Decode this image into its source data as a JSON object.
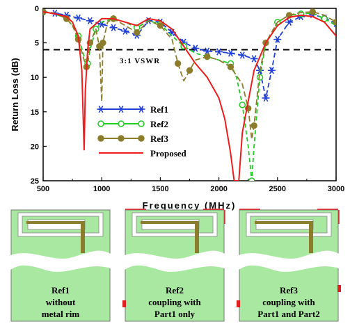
{
  "chart_data": {
    "type": "line",
    "xlabel": "Frequency (MHz)",
    "ylabel": "Return Loss (dB)",
    "xlim": [
      500,
      3000
    ],
    "ylim": [
      0,
      25
    ],
    "y_inverted": true,
    "xticks": [
      500,
      1000,
      1500,
      2000,
      2500,
      3000
    ],
    "yticks": [
      0,
      5,
      10,
      15,
      20,
      25
    ],
    "grid": false,
    "legend_position": "left-middle",
    "reference_line": {
      "y": 6,
      "label": "3:1 VSWR",
      "style": "dashed"
    },
    "series": [
      {
        "name": "Ref1",
        "color": "#1f3fd8",
        "marker": "asterisk",
        "x": [
          500,
          600,
          700,
          800,
          900,
          1000,
          1100,
          1200,
          1300,
          1400,
          1500,
          1600,
          1700,
          1800,
          1900,
          2000,
          2100,
          2200,
          2300,
          2350,
          2400,
          2450,
          2500,
          2600,
          2700,
          2800,
          2900,
          3000
        ],
        "y": [
          0.5,
          0.7,
          1.0,
          1.4,
          1.8,
          2.3,
          2.8,
          3.3,
          3.9,
          1.8,
          2.0,
          3.5,
          4.9,
          5.8,
          6.2,
          6.3,
          6.5,
          6.8,
          7.3,
          9.0,
          13.0,
          9.0,
          4.5,
          2.0,
          1.2,
          0.9,
          1.4,
          2.2
        ]
      },
      {
        "name": "Ref2",
        "color": "#22cc22",
        "marker": "open-circle",
        "x": [
          500,
          600,
          700,
          750,
          800,
          850,
          880,
          900,
          950,
          1000,
          1100,
          1200,
          1300,
          1400,
          1500,
          1600,
          1700,
          1800,
          1900,
          2000,
          2100,
          2150,
          2200,
          2250,
          2280,
          2300,
          2350,
          2400,
          2500,
          2600,
          2700,
          2800,
          2900,
          3000
        ],
        "y": [
          0.5,
          0.8,
          1.5,
          2.5,
          4.0,
          7.0,
          8.0,
          6.0,
          3.0,
          2.0,
          1.5,
          2.0,
          2.8,
          1.8,
          2.3,
          4.0,
          5.5,
          6.5,
          7.0,
          7.5,
          8.0,
          10.0,
          14.0,
          20.0,
          25.0,
          20.0,
          10.0,
          5.0,
          2.0,
          1.0,
          0.8,
          0.7,
          1.5,
          2.5
        ]
      },
      {
        "name": "Ref3",
        "color": "#8b7d2b",
        "marker": "filled-circle",
        "x": [
          500,
          600,
          700,
          750,
          800,
          850,
          870,
          880,
          900,
          950,
          980,
          1000,
          1010,
          1050,
          1100,
          1200,
          1300,
          1400,
          1500,
          1600,
          1650,
          1700,
          1750,
          1800,
          1900,
          2000,
          2100,
          2200,
          2250,
          2280,
          2300,
          2350,
          2400,
          2500,
          2600,
          2700,
          2800,
          2900,
          3000
        ],
        "y": [
          0.5,
          0.7,
          1.5,
          2.5,
          4.5,
          7.5,
          8.5,
          7.5,
          5.0,
          3.0,
          5.5,
          13.5,
          5.0,
          2.0,
          1.5,
          2.5,
          3.5,
          1.8,
          2.5,
          4.5,
          8.0,
          10.5,
          9.0,
          7.5,
          7.0,
          7.5,
          8.5,
          11.0,
          14.5,
          19.0,
          17.0,
          9.0,
          5.0,
          2.0,
          1.0,
          0.6,
          0.5,
          1.0,
          2.0
        ]
      },
      {
        "name": "Proposed",
        "color": "#ee1c1c",
        "marker": "none",
        "x": [
          500,
          600,
          700,
          750,
          800,
          830,
          850,
          860,
          880,
          900,
          1000,
          1100,
          1200,
          1300,
          1400,
          1500,
          1600,
          1700,
          1800,
          1900,
          2000,
          2050,
          2100,
          2130,
          2150,
          2170,
          2200,
          2300,
          2400,
          2500,
          2600,
          2700,
          2800,
          2900,
          3000
        ],
        "y": [
          0.5,
          0.8,
          1.2,
          2.0,
          4.0,
          9.0,
          20.5,
          12.0,
          6.0,
          3.0,
          1.5,
          1.5,
          2.0,
          2.5,
          1.5,
          1.8,
          3.0,
          5.5,
          8.0,
          10.0,
          13.0,
          16.0,
          21.0,
          25.0,
          25.0,
          25.0,
          18.0,
          9.0,
          5.0,
          2.5,
          1.3,
          1.0,
          1.2,
          2.0,
          4.0
        ]
      }
    ]
  },
  "panels": [
    {
      "line1": "Ref1",
      "line2": "without",
      "line3": "metal rim"
    },
    {
      "line1": "Ref2",
      "line2": "coupling with",
      "line3": "Part1 only"
    },
    {
      "line1": "Ref3",
      "line2": "coupling with",
      "line3": "Part1 and Part2"
    }
  ],
  "colors": {
    "board": "#a8e8a0",
    "feed": "#8b7d2b",
    "rim": "#e02020"
  }
}
